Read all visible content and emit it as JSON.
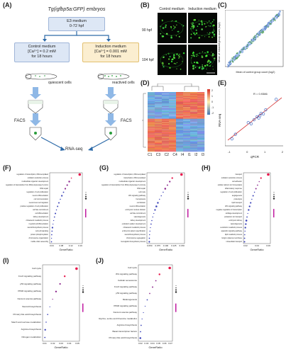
{
  "labels": {
    "A": "(A)",
    "B": "(B)",
    "C": "(C)",
    "D": "(D)",
    "E": "(E)",
    "F": "(F)",
    "G": "(G)",
    "H": "(H)",
    "I": "(I)",
    "J": "(J)"
  },
  "panelA": {
    "title": "Tg(igfbp5a:GFP) embryos",
    "e3": "E3 medium",
    "e3_time": "0-72 hpf",
    "control_title": "Control medium",
    "control_ca": "[Ca²⁺] = 0.2 mM",
    "control_time": "for 18 hours",
    "induction_title": "Induction medium",
    "induction_ca": "[Ca²⁺] = 0.001 mM",
    "induction_time": "for 18 hours",
    "quiescent": "quiescent cells",
    "reactived": "reactived cells",
    "facs_left": "FACS",
    "facs_right": "FACS",
    "rnaseq": "RNA-seq"
  },
  "panelB": {
    "col_control": "Control medium",
    "col_induction": "Induction medium",
    "row1": "90 hpf",
    "row2": "104 hpf"
  },
  "panelC": {
    "ylabel": "Mean of induced group count (log2)",
    "xlabel": "Mean of control group count (log2)"
  },
  "panelD": {
    "samples": [
      "C1",
      "C3",
      "C2",
      "C4",
      "I4",
      "I1",
      "I2",
      "I3"
    ],
    "scale": [
      "2",
      "1",
      "0",
      "-1",
      "-2"
    ]
  },
  "panelE": {
    "r": "R = 0.9386",
    "xlabel": "qPCR",
    "ylabel": "RNA-seq",
    "xticks": [
      "-1",
      "0",
      "1",
      "2"
    ]
  },
  "enrichment_axis": "GeneRatio",
  "panelF": {
    "terms": [
      "regulation of transcription, DNA-templated",
      "oxidation-reduction process",
      "multicellular organism development",
      "regulation of transcription from RNA polymerase II promoter",
      "DNA repair",
      "regulation of cell proliferation",
      "neuron differentiation",
      "cell communication",
      "neural crest cell migration",
      "positive regulation of cell proliferation",
      "cell fate commitment",
      "cell differentiation",
      "kidney development",
      "cholesterol metabolic process",
      "myeloid cell differentiation",
      "steroid biosynthetic process",
      "cell-cell signaling",
      "protein phosphorylation",
      "chromosome organization",
      "mobile cilium assembly"
    ],
    "xticks": [
      "0.04",
      "0.08",
      "0.12",
      "0.16"
    ]
  },
  "panelG": {
    "terms": [
      "regulation of transcription, DNA-templated",
      "transcription, DNA-templated",
      "multicellular organism development",
      "regulation of transcription from RNA polymerase II promoter",
      "DNA repair",
      "cell cycle",
      "Wnt signaling pathway",
      "hemopoiesis",
      "cell division",
      "neuron differentiation",
      "embryonic nucleus division",
      "cell fate commitment",
      "vasculogenesis",
      "kidney development",
      "endoderm pattern development",
      "cholesterol metabolic process",
      "embryonic pattern specification",
      "steroid biosynthetic process",
      "chromosome segregation",
      "hemoglobin biosynthetic process"
    ],
    "xticks": [
      "0.050",
      "0.075",
      "0.100",
      "0.125",
      "0.150"
    ]
  },
  "panelH": {
    "terms": [
      "transport",
      "oxidation-reduction process",
      "cell adhesion",
      "cellular calcium ion homeostasis",
      "inflammatory response",
      "regulation of cell proliferation",
      "angiogenesis",
      "proteolysis",
      "lipid transport",
      "Wnt signaling pathway",
      "negative regulation of transcription",
      "cartilage development",
      "potassium ion transport",
      "embryonic kidney",
      "vasculogenesis",
      "xenobiotic metabolic process",
      "apoptotic signaling pathway",
      "lipid metabolic process",
      "Golgi to plasma membrane",
      "intracellular transport"
    ],
    "xticks": [
      "0.02",
      "0.04",
      "0.06"
    ]
  },
  "panelI": {
    "terms": [
      "Cell cycle",
      "FoxO signaling pathway",
      "p53 signaling pathway",
      "PPAR signaling pathway",
      "Fanconi anemia pathway",
      "Steroid biosynthesis",
      "Primary bile acid biosynthesis",
      "Starch and sucrose metabolism",
      "Arginine biosynthesis",
      "Nitrogen metabolism"
    ],
    "xticks": [
      "0.01",
      "0.02",
      "0.03",
      "0.04",
      "0.05"
    ]
  },
  "panelJ": {
    "terms": [
      "Cell cycle",
      "Wnt signaling pathway",
      "Cellular senescence",
      "FoxO signaling pathway",
      "p53 signaling pathway",
      "Melanogenesis",
      "PPAR signaling pathway",
      "Fanconi anemia pathway",
      "Glycine, serine and threonine metabolism",
      "Arginine biosynthesis",
      "Basal transcription factors",
      "Primary bile acid biosynthesis"
    ],
    "xticks": [
      "0.02",
      "0.03",
      "0.04",
      "0.05",
      "0.06",
      "0.07"
    ]
  }
}
